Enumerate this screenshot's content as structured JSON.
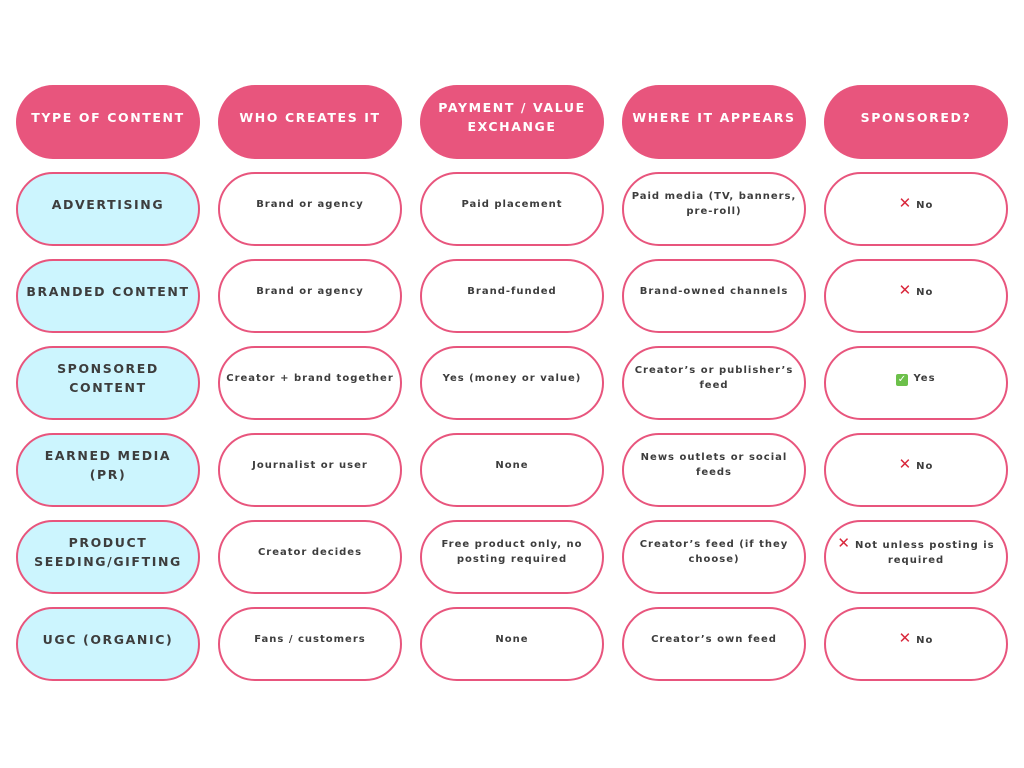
{
  "colors": {
    "header_bg": "#E8557D",
    "type_bg": "#CCF5FE",
    "border": "#E8557D",
    "text": "#3d3d3d"
  },
  "headers": [
    "TYPE OF CONTENT",
    "WHO CREATES IT",
    "PAYMENT / VALUE EXCHANGE",
    "WHERE IT APPEARS",
    "SPONSORED?"
  ],
  "rows": [
    {
      "type": "ADVERTISING",
      "creator": "Brand or agency",
      "payment": "Paid placement",
      "where": "Paid media (TV, banners, pre-roll)",
      "sponsored_icon": "cross-icon",
      "sponsored": "No"
    },
    {
      "type": "BRANDED CONTENT",
      "creator": "Brand or agency",
      "payment": "Brand-funded",
      "where": "Brand-owned channels",
      "sponsored_icon": "cross-icon",
      "sponsored": "No"
    },
    {
      "type": "SPONSORED CONTENT",
      "creator": "Creator + brand together",
      "payment": "Yes (money or value)",
      "where": "Creator’s or publisher’s feed",
      "sponsored_icon": "check-icon",
      "sponsored": "Yes"
    },
    {
      "type": "EARNED MEDIA (PR)",
      "creator": "Journalist or user",
      "payment": "None",
      "where": "News outlets or social feeds",
      "sponsored_icon": "cross-icon",
      "sponsored": "No"
    },
    {
      "type": "PRODUCT SEEDING/GIFTING",
      "creator": "Creator decides",
      "payment": "Free product only, no posting required",
      "where": "Creator’s feed (if they choose)",
      "sponsored_icon": "cross-icon",
      "sponsored": "Not unless posting is required"
    },
    {
      "type": "UGC (ORGANIC)",
      "creator": "Fans / customers",
      "payment": "None",
      "where": "Creator’s own feed",
      "sponsored_icon": "cross-icon",
      "sponsored": "No"
    }
  ]
}
